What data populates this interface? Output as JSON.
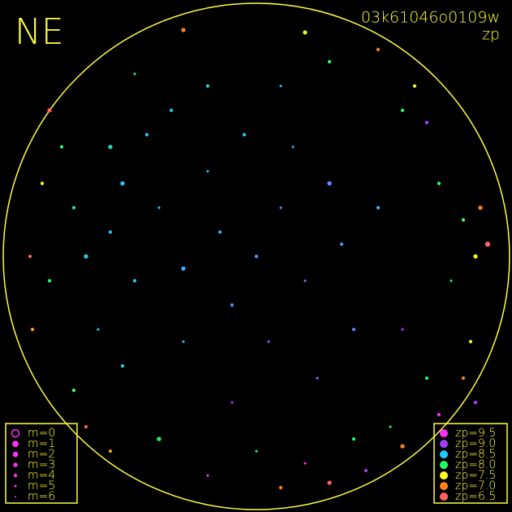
{
  "title": "NE",
  "image_id": "03k61046o0109w",
  "mode": "zp",
  "magnitude_legend": [
    "m=0",
    "m=1",
    "m=2",
    "m=3",
    "m=4",
    "m=5",
    "m=6"
  ],
  "magnitude_color": "#ff30ff",
  "zp_scale": [
    {
      "value": 9.5,
      "label": "zp=9.5",
      "color": "#ff30ff"
    },
    {
      "value": 9.0,
      "label": "zp=9.0",
      "color": "#a040ff"
    },
    {
      "value": 8.5,
      "label": "zp=8.5",
      "color": "#20c8ff"
    },
    {
      "value": 8.0,
      "label": "zp=8.0",
      "color": "#20ff60"
    },
    {
      "value": 7.5,
      "label": "zp=7.5",
      "color": "#ffff20"
    },
    {
      "value": 7.0,
      "label": "zp=7.0",
      "color": "#ff8020"
    },
    {
      "value": 6.5,
      "label": "zp=6.5",
      "color": "#ff6060"
    }
  ],
  "stars": {
    "x": [
      0,
      0.1,
      -0.15,
      0.2,
      0.3,
      -0.1,
      0.05,
      0.35,
      -0.3,
      0.15,
      0.4,
      -0.05,
      0.25,
      0.5,
      -0.2,
      -0.55,
      -0.6,
      -0.5,
      -0.65,
      -0.45,
      -0.7,
      -0.4,
      -0.55,
      -0.35,
      -0.75,
      -0.3,
      -0.2,
      0.1,
      -0.6,
      0.6,
      0.75,
      0.8,
      0.7,
      0.4,
      0,
      -0.4,
      -0.75,
      -0.85,
      -0.8,
      -0.5,
      0.3,
      0.85,
      0.55,
      0.9,
      0.65,
      -0.88,
      0.2,
      0.88,
      0.5,
      0.92,
      -0.6,
      0.85,
      -0.3,
      0.1,
      -0.92,
      0.6,
      -0.85,
      0.95,
      -0.7,
      0.3,
      -0.93,
      0.7,
      0.6,
      -0.1,
      0.9,
      0.45,
      0.2,
      0.75,
      -0.2
    ],
    "y": [
      0,
      0.2,
      0.1,
      -0.1,
      0.3,
      -0.2,
      -0.35,
      0.05,
      -0.05,
      0.45,
      -0.3,
      0.5,
      -0.5,
      0.2,
      0.35,
      0.3,
      0.1,
      -0.1,
      -0.3,
      0.5,
      0,
      0.2,
      -0.45,
      0.6,
      0.2,
      -0.35,
      0.7,
      0.7,
      0.45,
      0.6,
      0.3,
      -0.1,
      -0.5,
      -0.75,
      -0.8,
      -0.75,
      -0.55,
      -0.1,
      0.45,
      0.75,
      0.8,
      0.15,
      -0.7,
      0,
      0.7,
      0.3,
      0.92,
      -0.35,
      0.85,
      0.2,
      -0.8,
      -0.5,
      0.93,
      -0.95,
      -0.3,
      -0.78,
      0.6,
      0.05,
      -0.7,
      -0.93,
      0,
      0.55,
      -0.3,
      -0.6,
      -0.6,
      -0.88,
      -0.85,
      -0.65,
      -0.9
    ],
    "zp": [
      8.7,
      8.7,
      8.6,
      8.8,
      8.7,
      8.7,
      8.8,
      8.7,
      8.6,
      8.6,
      8.8,
      8.5,
      8.8,
      8.6,
      8.5,
      8.5,
      8.5,
      8.5,
      8.4,
      8.5,
      8.4,
      8.5,
      8.4,
      8.5,
      8.3,
      8.5,
      8.4,
      8.5,
      8.3,
      8.0,
      8.0,
      8.1,
      8.0,
      8.0,
      8.1,
      8.0,
      7.9,
      8.0,
      8.0,
      8.1,
      8.0,
      7.9,
      8.0,
      7.5,
      7.5,
      7.5,
      7.6,
      7.5,
      7.0,
      7.0,
      7.1,
      7.0,
      7.0,
      7.0,
      7.1,
      7.0,
      6.5,
      6.5,
      6.6,
      6.5,
      6.5,
      9.0,
      9.0,
      9.0,
      9.1,
      9.0,
      9.5,
      9.5,
      9.4
    ],
    "m": [
      5,
      6,
      5,
      6,
      4,
      5,
      6,
      5,
      4,
      6,
      5,
      5,
      6,
      5,
      6,
      4,
      5,
      5,
      6,
      5,
      4,
      6,
      5,
      5,
      5,
      6,
      5,
      6,
      4,
      5,
      5,
      6,
      5,
      5,
      6,
      4,
      5,
      5,
      5,
      6,
      5,
      5,
      6,
      4,
      5,
      5,
      4,
      5,
      5,
      4,
      5,
      5,
      4,
      5,
      5,
      4,
      4,
      3,
      5,
      4,
      5,
      5,
      6,
      6,
      5,
      5,
      6,
      5,
      6
    ]
  }
}
